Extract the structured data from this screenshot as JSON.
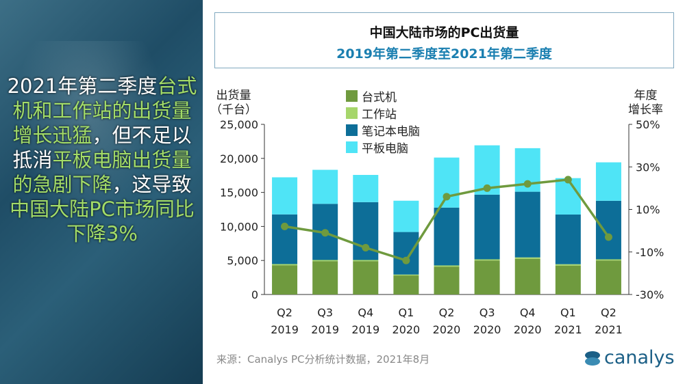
{
  "headline": {
    "segments": [
      {
        "text": "2021年第二季度",
        "color": "white"
      },
      {
        "text": "台式机和工作站的出货量增长迅猛",
        "color": "green"
      },
      {
        "text": "，但不足以抵消",
        "color": "white"
      },
      {
        "text": "平板电脑出货量的急剧下降",
        "color": "green"
      },
      {
        "text": "，这导致",
        "color": "white"
      },
      {
        "text": "中国大陆PC市场同比下降3%",
        "color": "green"
      }
    ]
  },
  "source": "来源：Canalys PC分析统计数据，2021年8月",
  "logo": "canalys",
  "colors": {
    "desktop": "#6f9a3e",
    "workstation": "#a6d66b",
    "notebook": "#0d6e98",
    "tablet": "#4fe4f6",
    "line": "#6f9a3e",
    "accent": "#1a7fb0"
  },
  "chart_data": {
    "type": "bar",
    "stacked": true,
    "title": "中国大陆市场的PC出货量",
    "subtitle": "2019年第二季度至2021年第二季度",
    "ylabel": "出货量（千台）",
    "ylabel_lines": [
      "出货量",
      "（千台）"
    ],
    "y2label": "年度增长率",
    "y2label_lines": [
      "年度",
      "增长率"
    ],
    "ylim": [
      0,
      25000
    ],
    "yticks": [
      "0",
      "5,000",
      "10,000",
      "15,000",
      "20,000",
      "25,000"
    ],
    "y2lim": [
      -30,
      50
    ],
    "y2ticks": [
      "-30%",
      "-10%",
      "10%",
      "30%",
      "50%"
    ],
    "categories": [
      [
        "Q2",
        "2019"
      ],
      [
        "Q3",
        "2019"
      ],
      [
        "Q4",
        "2019"
      ],
      [
        "Q1",
        "2020"
      ],
      [
        "Q2",
        "2020"
      ],
      [
        "Q3",
        "2020"
      ],
      [
        "Q4",
        "2020"
      ],
      [
        "Q1",
        "2021"
      ],
      [
        "Q2",
        "2021"
      ]
    ],
    "series": [
      {
        "name": "台式机",
        "key": "desktop",
        "values": [
          4300,
          4900,
          4900,
          2800,
          4100,
          5000,
          5250,
          4250,
          5000
        ]
      },
      {
        "name": "工作站",
        "key": "workstation",
        "values": [
          170,
          170,
          170,
          130,
          170,
          170,
          200,
          200,
          170
        ]
      },
      {
        "name": "笔记本电脑",
        "key": "notebook",
        "values": [
          7300,
          8250,
          8500,
          6250,
          8500,
          9500,
          9650,
          7300,
          8600
        ]
      },
      {
        "name": "平板电脑",
        "key": "tablet",
        "values": [
          5450,
          5000,
          4000,
          4600,
          7350,
          7250,
          6400,
          5350,
          5650
        ]
      }
    ],
    "line": {
      "name": "年度增长率",
      "axis": "right",
      "values": [
        2,
        -1,
        -8,
        -14,
        16,
        20,
        22,
        24,
        -3
      ]
    },
    "legend": "top-center"
  }
}
